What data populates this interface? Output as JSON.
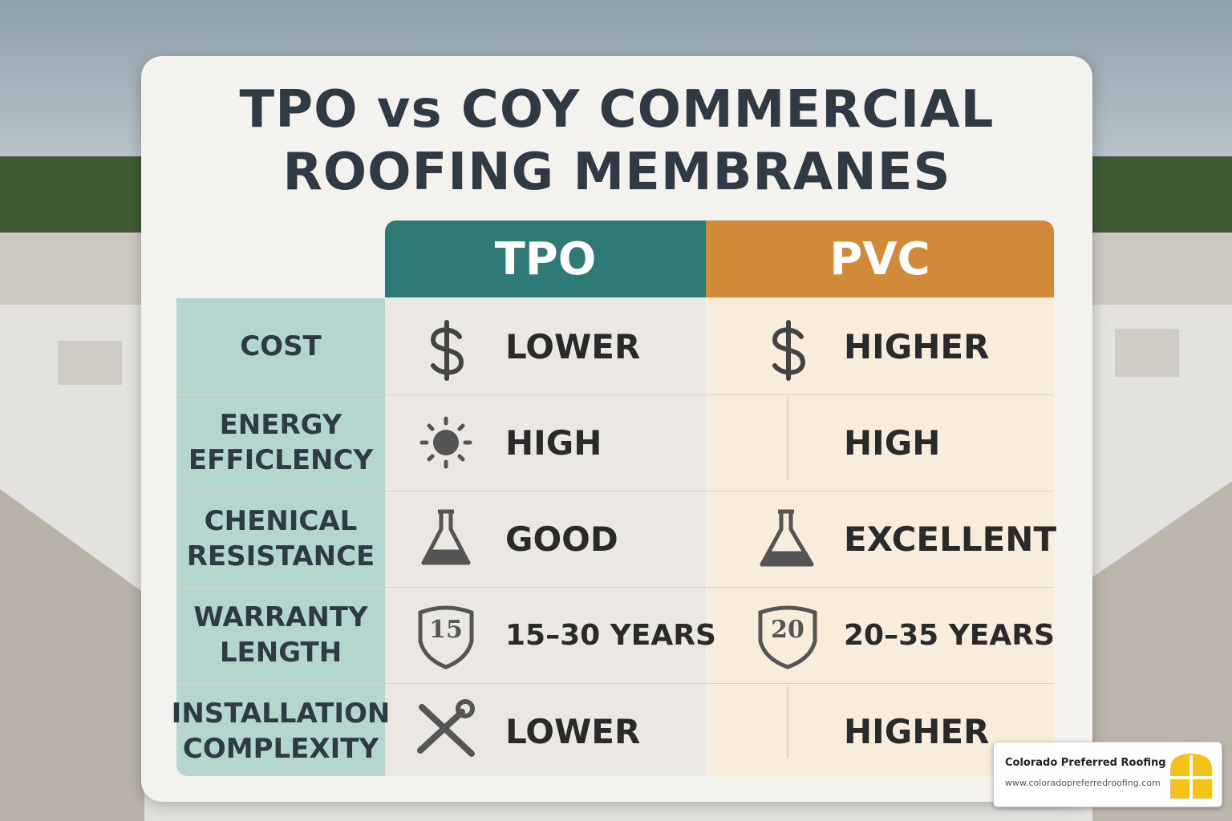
{
  "title": {
    "lines": [
      "TPO vs  COY  COMMERCIAL",
      "ROOFING MEMBRANES"
    ]
  },
  "table": {
    "columns": [
      "TPO",
      "PVC"
    ],
    "rows": [
      {
        "label": [
          "COST"
        ],
        "cells": [
          {
            "text": "LOWER"
          },
          {
            "text": "HIGHER"
          }
        ]
      },
      {
        "label": [
          "ENERGY",
          "EFFICLENCY"
        ],
        "cells": [
          {
            "text": "HIGH"
          },
          {
            "text": "HIGH"
          }
        ]
      },
      {
        "label": [
          "CHENICAL",
          "RESISTANCE"
        ],
        "cells": [
          {
            "text": "GOOD"
          },
          {
            "text": "EXCELLENT"
          }
        ]
      },
      {
        "label": [
          "WARRANTY",
          "LENGTH"
        ],
        "cells": [
          {
            "text": "15–30 YEARS",
            "icon_text": "15"
          },
          {
            "text": "20–35 YEARS",
            "icon_text": "20"
          }
        ]
      },
      {
        "label": [
          "INSTALLATION",
          "COMPLEXITY"
        ],
        "cells": [
          {
            "text": "LOWER"
          },
          {
            "text": "HIGHER"
          }
        ]
      }
    ]
  },
  "badge": {
    "name": "Colorado Preferred Roofing",
    "url": "www.coloradopreferredroofing.com"
  }
}
